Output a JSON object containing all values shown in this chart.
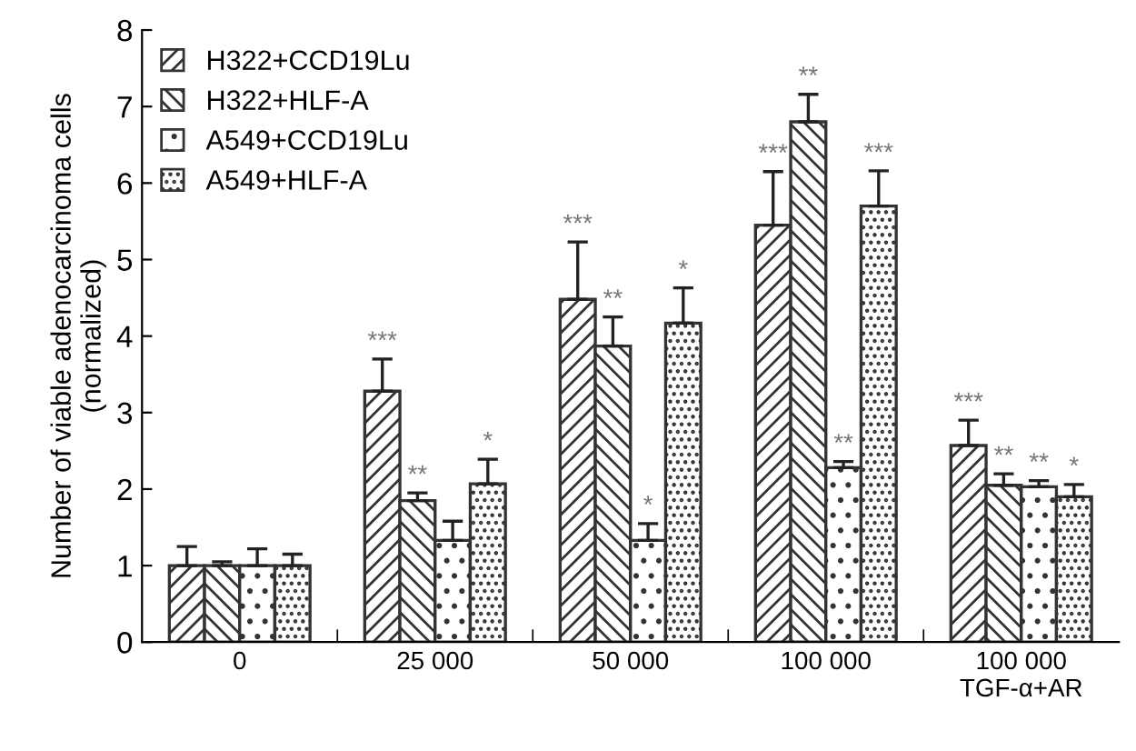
{
  "chart_data": {
    "type": "bar",
    "ylabel": "Number of viable adenocarcinoma cells\n(normalized)",
    "categories": [
      "0",
      "25 000",
      "50 000",
      "100 000",
      "100 000\nTGF-α+AR"
    ],
    "series": [
      {
        "name": "H322+CCD19Lu",
        "color": "#333333",
        "values": [
          1.0,
          3.28,
          4.48,
          5.45,
          2.57
        ],
        "errors": [
          0.25,
          0.42,
          0.75,
          0.7,
          0.33
        ],
        "value_labels": [
          null,
          "***",
          "***",
          "***",
          "***"
        ]
      },
      {
        "name": "H322+HLF-A",
        "color": "#333333",
        "values": [
          1.0,
          1.85,
          3.87,
          6.8,
          2.05
        ],
        "errors": [
          0.05,
          0.1,
          0.38,
          0.36,
          0.15
        ],
        "value_labels": [
          null,
          "**",
          "**",
          "**",
          "**"
        ]
      },
      {
        "name": "A549+CCD19Lu",
        "color": "#333333",
        "values": [
          1.0,
          1.33,
          1.33,
          2.28,
          2.03
        ],
        "errors": [
          0.22,
          0.25,
          0.22,
          0.08,
          0.08
        ],
        "value_labels": [
          null,
          null,
          "*",
          "**",
          "**"
        ]
      },
      {
        "name": "A549+HLF-A",
        "color": "#333333",
        "values": [
          1.0,
          2.07,
          4.17,
          5.7,
          1.9
        ],
        "errors": [
          0.15,
          0.32,
          0.46,
          0.46,
          0.16
        ],
        "value_labels": [
          null,
          "*",
          "*",
          "***",
          "*"
        ]
      }
    ],
    "ylim": [
      0,
      8
    ],
    "yticks": [
      0,
      1,
      2,
      3,
      4,
      5,
      6,
      7,
      8
    ],
    "legend": "top left",
    "grid": false
  }
}
